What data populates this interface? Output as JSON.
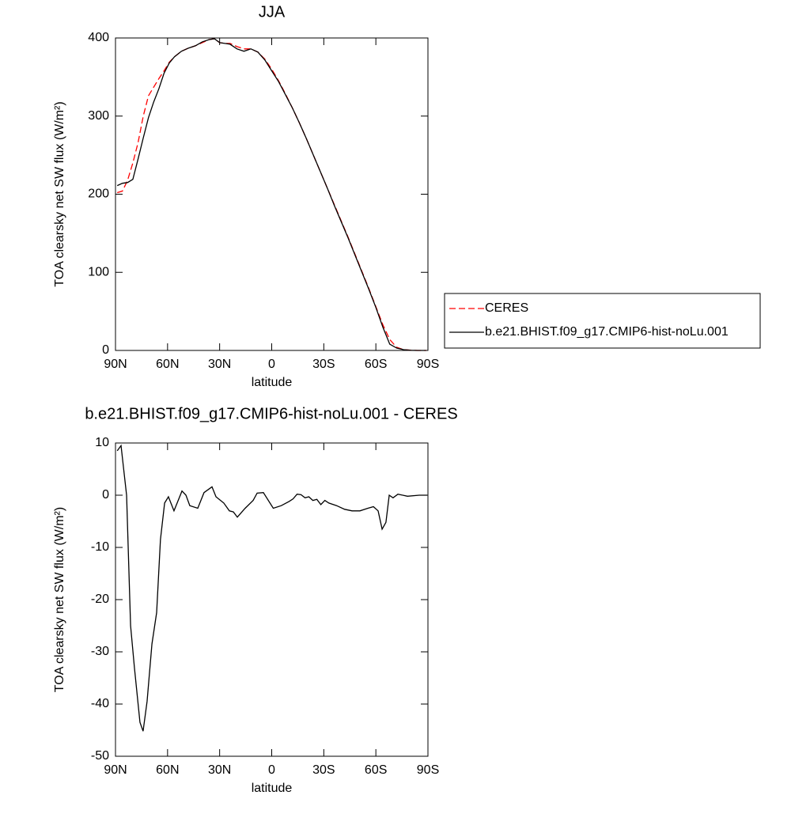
{
  "chart_data": [
    {
      "type": "line",
      "title": "JJA",
      "xlabel": "latitude",
      "ylabel": "TOA clearsky net SW flux (W/m²)",
      "x": [
        89,
        86,
        83,
        80,
        77,
        74,
        71,
        68,
        65,
        62,
        59,
        56,
        52,
        48,
        44,
        40,
        36,
        33,
        30,
        27,
        24,
        20,
        16,
        12,
        8,
        4,
        0,
        -4,
        -8,
        -12,
        -16,
        -20,
        -24,
        -28,
        -32,
        -36,
        -40,
        -44,
        -48,
        -52,
        -56,
        -60,
        -64,
        -68,
        -72,
        -76,
        -80,
        -84,
        -89
      ],
      "xlim": [
        90,
        -90
      ],
      "xticks": [
        {
          "value": 90,
          "label": "90N"
        },
        {
          "value": 60,
          "label": "60N"
        },
        {
          "value": 30,
          "label": "30N"
        },
        0,
        {
          "value": -30,
          "label": "30S"
        },
        {
          "value": -60,
          "label": "60S"
        },
        {
          "value": -90,
          "label": "90S"
        }
      ],
      "ylim": [
        0,
        400
      ],
      "yticks": [
        0,
        100,
        200,
        300,
        400
      ],
      "legend": "right",
      "series": [
        {
          "name": "CERES",
          "color": "#ff0000",
          "line_style": "dashed",
          "values": [
            202,
            204,
            218,
            240,
            266,
            300,
            326,
            337,
            348,
            358,
            369,
            376,
            383,
            387,
            390,
            394,
            398,
            399,
            394,
            393,
            393,
            389,
            386,
            386,
            382,
            373,
            360,
            345,
            328,
            310,
            291,
            271,
            250,
            229,
            208,
            187,
            166,
            145,
            123,
            101,
            79,
            56,
            33,
            14,
            4,
            1,
            0.3,
            0,
            0
          ]
        },
        {
          "name": "b.e21.BHIST.f09_g17.CMIP6-hist-noLu.001",
          "color": "#000000",
          "line_style": "solid",
          "values": [
            211,
            214,
            215,
            219,
            245,
            272,
            298,
            318,
            335,
            355,
            368,
            376,
            383,
            387,
            390,
            395,
            398,
            399,
            394,
            393,
            392,
            386,
            383,
            386,
            382,
            372,
            358,
            344,
            327,
            310,
            291,
            271,
            250,
            229,
            208,
            186,
            165,
            144,
            122,
            100,
            78,
            55,
            30,
            8,
            3,
            1,
            0.2,
            0,
            0
          ]
        }
      ]
    },
    {
      "type": "line",
      "title": "b.e21.BHIST.f09_g17.CMIP6-hist-noLu.001 - CERES",
      "xlabel": "latitude",
      "ylabel": "TOA clearsky net SW flux (W/m²)",
      "x": [
        89,
        86.8,
        83.6,
        81.3,
        79.1,
        75.9,
        74.1,
        71.8,
        69.0,
        66.3,
        64.1,
        61.7,
        59.5,
        56.3,
        51.7,
        49.4,
        47.2,
        42.6,
        39.0,
        34.4,
        32.1,
        27.6,
        24.4,
        22.1,
        19.8,
        15.3,
        10.7,
        8.4,
        4.8,
        -0.9,
        -5.5,
        -10.0,
        -12.3,
        -14.6,
        -16.9,
        -19.2,
        -21.4,
        -23.7,
        -26.0,
        -28.3,
        -30.6,
        -32.9,
        -37.4,
        -42.0,
        -46.3,
        -50.8,
        -55.4,
        -58.6,
        -61.3,
        -63.6,
        -65.8,
        -67.7,
        -69.9,
        -72.7,
        -78.2,
        -85.0,
        -89.5
      ],
      "xlim": [
        90,
        -90
      ],
      "xticks": [
        {
          "value": 90,
          "label": "90N"
        },
        {
          "value": 60,
          "label": "60N"
        },
        {
          "value": 30,
          "label": "30N"
        },
        0,
        {
          "value": -30,
          "label": "30S"
        },
        {
          "value": -60,
          "label": "60S"
        },
        {
          "value": -90,
          "label": "90S"
        }
      ],
      "ylim": [
        -50,
        10
      ],
      "yticks": [
        -50,
        -40,
        -30,
        -20,
        -10,
        0,
        10
      ],
      "series": [
        {
          "color": "#000000",
          "line_style": "solid",
          "values": [
            8.5,
            9.5,
            0,
            -25,
            -33,
            -43.5,
            -45.2,
            -39.5,
            -28.5,
            -22.5,
            -8.5,
            -1.5,
            -0.3,
            -3,
            0.8,
            0,
            -2,
            -2.5,
            0.5,
            1.6,
            -0.3,
            -1.5,
            -3,
            -3.2,
            -4.2,
            -2.5,
            -1,
            0.4,
            0.5,
            -2.5,
            -2,
            -1.2,
            -0.7,
            0.2,
            0.1,
            -0.5,
            -0.3,
            -1,
            -0.8,
            -1.8,
            -1,
            -1.5,
            -2,
            -2.7,
            -3,
            -3,
            -2.5,
            -2.2,
            -3,
            -6.5,
            -5.2,
            0,
            -0.5,
            0.2,
            -0.2,
            0,
            0
          ]
        }
      ]
    }
  ]
}
